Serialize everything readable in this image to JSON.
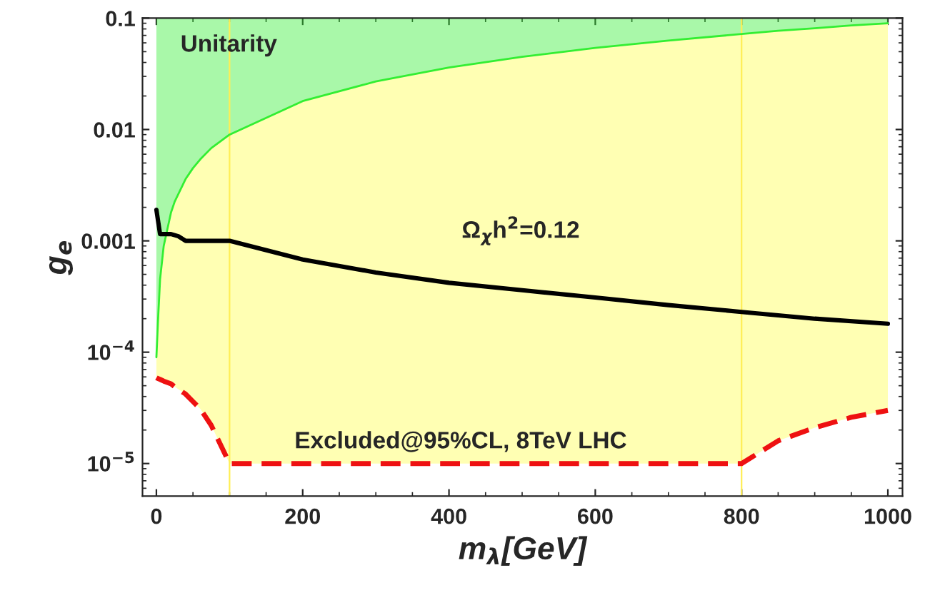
{
  "chart_data": {
    "type": "line",
    "xlabel": "m$_{λ}$[GeV]",
    "ylabel": "g$_{e}$",
    "log": "y",
    "grid": false,
    "legend": false,
    "xlim": [
      -19,
      1020
    ],
    "ylim": [
      5.1e-06,
      0.1
    ],
    "xticks": [
      0,
      200,
      400,
      600,
      800,
      1000
    ],
    "yticks": [
      {
        "value": 1e-05,
        "label": "10$^{−5}$"
      },
      {
        "value": 0.0001,
        "label": "10$^{−4}$"
      },
      0.001,
      0.01,
      0.1
    ],
    "x": [
      0,
      2,
      5,
      10,
      20,
      25,
      40,
      50,
      60,
      75,
      100,
      200,
      300,
      400,
      500,
      600,
      700,
      800,
      850,
      900,
      950,
      1000
    ],
    "series": [
      {
        "color": "#33ee33",
        "line_style": "solid",
        "upper": [
          0.1,
          0.1,
          0.1,
          0.1,
          0.1,
          0.1,
          0.1,
          0.1,
          0.1,
          0.1,
          0.1,
          0.1,
          0.1,
          0.1,
          0.1,
          0.1,
          0.1,
          0.1,
          0.1,
          0.1,
          0.1,
          0.1
        ],
        "lower": [
          9e-05,
          0.00018,
          0.00045,
          0.0009,
          0.0018,
          0.00225,
          0.0036,
          0.0045,
          0.0054,
          0.0068,
          0.009,
          0.018,
          0.027,
          0.036,
          0.045,
          0.054,
          0.063,
          0.072,
          0.077,
          0.081,
          0.086,
          0.09
        ],
        "values": [
          9e-05,
          0.00018,
          0.00045,
          0.0009,
          0.0018,
          0.00225,
          0.0036,
          0.0045,
          0.0054,
          0.0068,
          0.009,
          0.018,
          0.027,
          0.036,
          0.045,
          0.054,
          0.063,
          0.072,
          0.077,
          0.081,
          0.086,
          0.09
        ]
      },
      {
        "color": "#ee1111",
        "line_style": "dashed",
        "values": [
          5.9e-05,
          5.8e-05,
          5.7e-05,
          5.5e-05,
          5.2e-05,
          4.9e-05,
          4.2e-05,
          3.6e-05,
          3.1e-05,
          2.2e-05,
          1e-05,
          1e-05,
          1e-05,
          1e-05,
          1e-05,
          1e-05,
          1e-05,
          1e-05,
          1.6e-05,
          2.1e-05,
          2.6e-05,
          3e-05
        ]
      },
      {
        "color": "#000000",
        "line_style": "solid",
        "x": [
          0,
          5,
          20,
          30,
          40,
          100,
          200,
          300,
          400,
          500,
          600,
          700,
          800,
          900,
          1000
        ],
        "values": [
          0.0019,
          0.00115,
          0.00115,
          0.0011,
          0.001,
          0.001,
          0.00068,
          0.00052,
          0.00042,
          0.00036,
          0.00031,
          0.000265,
          0.00023,
          0.0002,
          0.00018
        ]
      }
    ],
    "ref_lines": [
      {
        "axis": "x",
        "value": 100,
        "color": "#ffee55"
      },
      {
        "axis": "x",
        "value": 800,
        "color": "#ffee55"
      }
    ],
    "annotations": [
      "Unitarity",
      "Ω$_{χ}$h$^{2}$=0.12",
      "Excluded@95%CL, 8TeV LHC"
    ]
  }
}
